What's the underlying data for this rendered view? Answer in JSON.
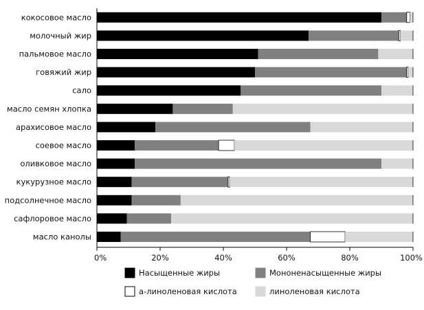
{
  "chart_data": {
    "type": "bar",
    "orientation": "horizontal",
    "stacked": true,
    "title": "",
    "xlabel": "",
    "ylabel": "",
    "xlim": [
      0,
      100
    ],
    "x_ticks": [
      "0%",
      "20%",
      "40%",
      "60%",
      "80%",
      "100%"
    ],
    "grid": false,
    "legend_position": "bottom",
    "categories": [
      "кокосовое масло",
      "молочный жир",
      "пальмовое масло",
      "говяжий жир",
      "сало",
      "масло семян хлопка",
      "арахисовое масло",
      "соевое масло",
      "оливковое масло",
      "кукурузное масло",
      "подсолнечное масло",
      "сафлоровое масло",
      "масло канолы"
    ],
    "series": [
      {
        "name": "Насыщенные жиры",
        "color": "#000000",
        "values": [
          90,
          67,
          51,
          50,
          45.5,
          24,
          18.5,
          12,
          12,
          11,
          11,
          9.5,
          7.5
        ]
      },
      {
        "name": "Мононенасыщенные жиры",
        "color": "#808080",
        "values": [
          8,
          28.5,
          38,
          48,
          44.5,
          19,
          49,
          26.5,
          78,
          30.5,
          15.5,
          14,
          60
        ]
      },
      {
        "name": "а-линоленовая кислота",
        "color": "#ffffff",
        "values": [
          1,
          0.5,
          0,
          0.5,
          0,
          0,
          0,
          5,
          0,
          0.5,
          0,
          0,
          11
        ]
      },
      {
        "name": "линоленовая кислота",
        "color": "#d9d9d9",
        "values": [
          1,
          4,
          11,
          1.5,
          10,
          57,
          32.5,
          56.5,
          10,
          58,
          73.5,
          76.5,
          21.5
        ]
      }
    ]
  }
}
